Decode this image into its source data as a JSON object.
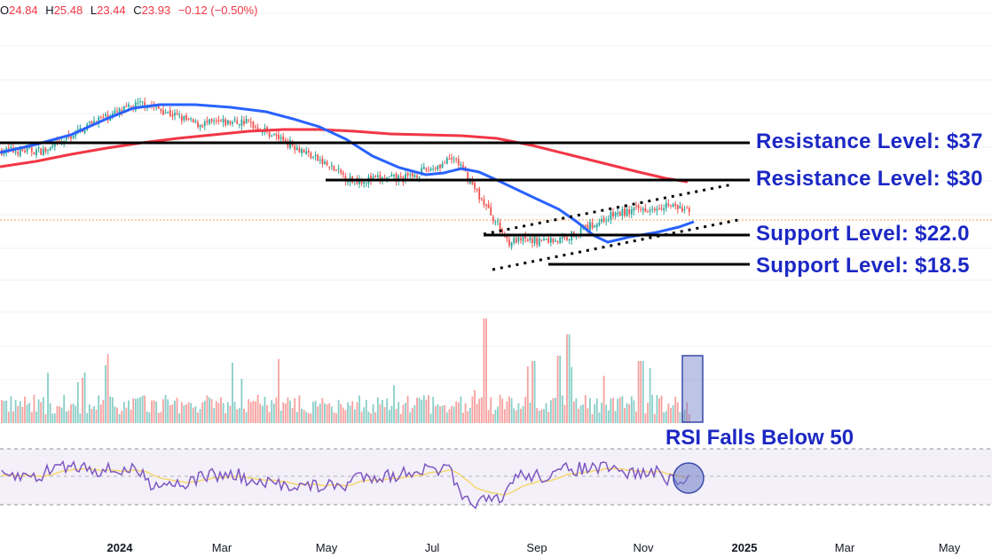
{
  "header": {
    "open_label": "O",
    "open": "24.84",
    "high_label": "H",
    "high": "25.48",
    "low_label": "L",
    "low": "23.44",
    "close_label": "C",
    "close": "23.93",
    "change": "−0.12 (−0.50%)"
  },
  "annotations": {
    "resistance_1": "Resistance Level: $37",
    "resistance_2": "Resistance Level: $30",
    "support_1": "Support Level: $22.0",
    "support_2": "Support Level: $18.5",
    "rsi_note": "RSI Falls Below 50"
  },
  "colors": {
    "up": "#26a69a",
    "down": "#ef5350",
    "ma_fast": "#2962ff",
    "ma_slow": "#f23645",
    "annotation": "#1c28c4",
    "rsi": "#7e57c2",
    "rsi_signal": "#f5d76e"
  },
  "chart_data": {
    "type": "candlestick",
    "x_tick_labels": [
      "2024",
      "Mar",
      "May",
      "Jul",
      "Sep",
      "Nov",
      "2025",
      "Mar",
      "May"
    ],
    "horizontal_levels": [
      37,
      30,
      22,
      18.5
    ],
    "price_series_keypoints": [
      {
        "date": "2023-11",
        "price": 35.5
      },
      {
        "date": "2023-12",
        "price": 41
      },
      {
        "date": "2024-01",
        "price": 44.5
      },
      {
        "date": "2024-02",
        "price": 40.5
      },
      {
        "date": "2024-03",
        "price": 41
      },
      {
        "date": "2024-04",
        "price": 36
      },
      {
        "date": "2024-05",
        "price": 30
      },
      {
        "date": "2024-06",
        "price": 30.3
      },
      {
        "date": "2024-07",
        "price": 34
      },
      {
        "date": "2024-08",
        "price": 18.5
      },
      {
        "date": "2024-09",
        "price": 18.8
      },
      {
        "date": "2024-10",
        "price": 23.5
      },
      {
        "date": "2024-11",
        "price": 25.5
      },
      {
        "date": "2024-11-29",
        "price": 23.93
      }
    ],
    "rsi_levels": [
      70,
      50,
      30
    ]
  }
}
